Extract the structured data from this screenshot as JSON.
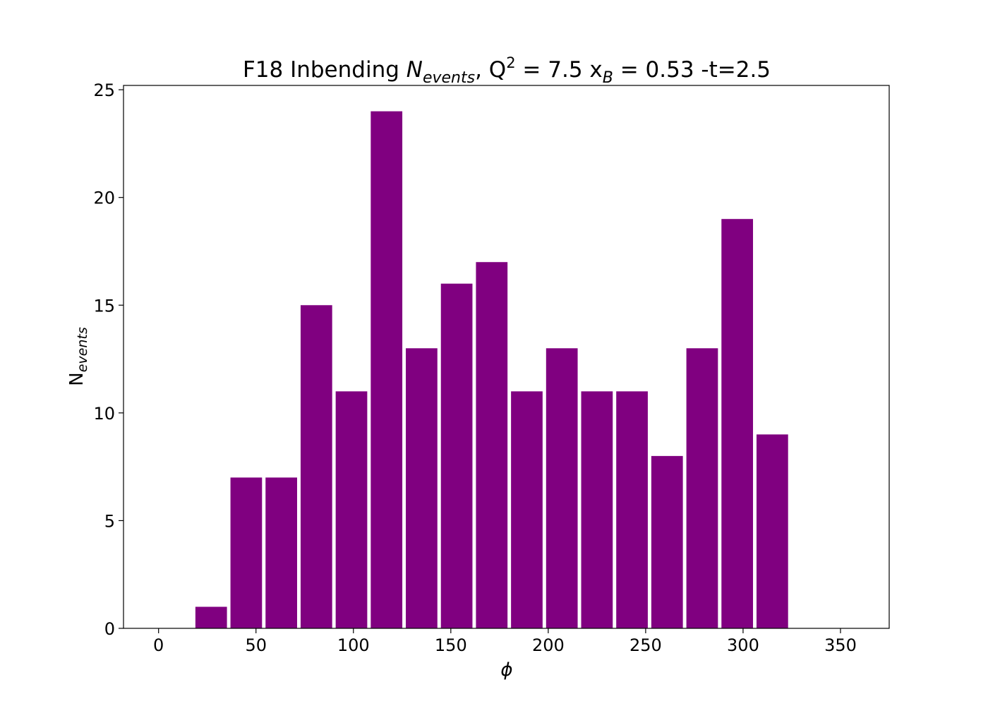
{
  "chart_data": {
    "type": "bar",
    "title": {
      "prefix": "F18 Inbending ",
      "n_main": "N",
      "n_sub": "events",
      "q_part": ", Q",
      "q_sup": "2",
      "mid": " = 7.5 x",
      "x_sub": "B",
      "suffix": " = 0.53 -t=2.5"
    },
    "xlabel": "ϕ",
    "ylabel": {
      "main": "N",
      "sub": "events"
    },
    "xlim": [
      -18,
      375
    ],
    "ylim": [
      0,
      25.2
    ],
    "xticks": [
      0,
      50,
      100,
      150,
      200,
      250,
      300,
      350
    ],
    "yticks": [
      0,
      5,
      10,
      15,
      20,
      25
    ],
    "bin_width": 18,
    "bar_width": 16.2,
    "bar_color": "#800080",
    "bins": [
      9,
      27,
      45,
      63,
      81,
      99,
      117,
      135,
      153,
      171,
      189,
      207,
      225,
      243,
      261,
      279,
      297,
      315,
      333,
      351
    ],
    "values": [
      0,
      1,
      7,
      7,
      15,
      11,
      24,
      13,
      16,
      17,
      11,
      13,
      11,
      11,
      8,
      13,
      19,
      9,
      0,
      0
    ]
  }
}
